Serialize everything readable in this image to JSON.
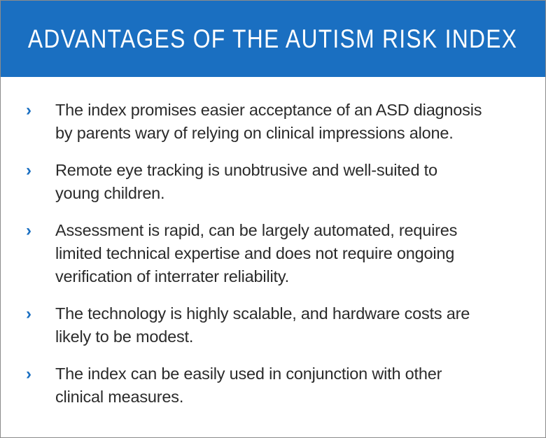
{
  "header": {
    "title": "ADVANTAGES OF THE AUTISM RISK INDEX"
  },
  "items": [
    {
      "bullet": "›",
      "lines": [
        "The index promises easier acceptance of an ASD diagnosis",
        "by parents wary of relying on clinical impressions alone."
      ]
    },
    {
      "bullet": "›",
      "lines": [
        "Remote eye tracking is unobtrusive and well-suited to",
        "young children."
      ]
    },
    {
      "bullet": "›",
      "lines": [
        "Assessment is rapid, can be largely automated, requires",
        "limited technical expertise and does not require ongoing",
        "verification of interrater reliability."
      ]
    },
    {
      "bullet": "›",
      "lines": [
        "The technology is highly scalable, and hardware costs are",
        "likely to be modest."
      ]
    },
    {
      "bullet": "›",
      "lines": [
        "The index can be easily used in conjunction with other",
        "clinical measures."
      ]
    }
  ],
  "colors": {
    "header_bg": "#1a6fc1",
    "bullet": "#1a6fc1",
    "text": "#2b2b2b",
    "border": "#8c8c8c"
  }
}
